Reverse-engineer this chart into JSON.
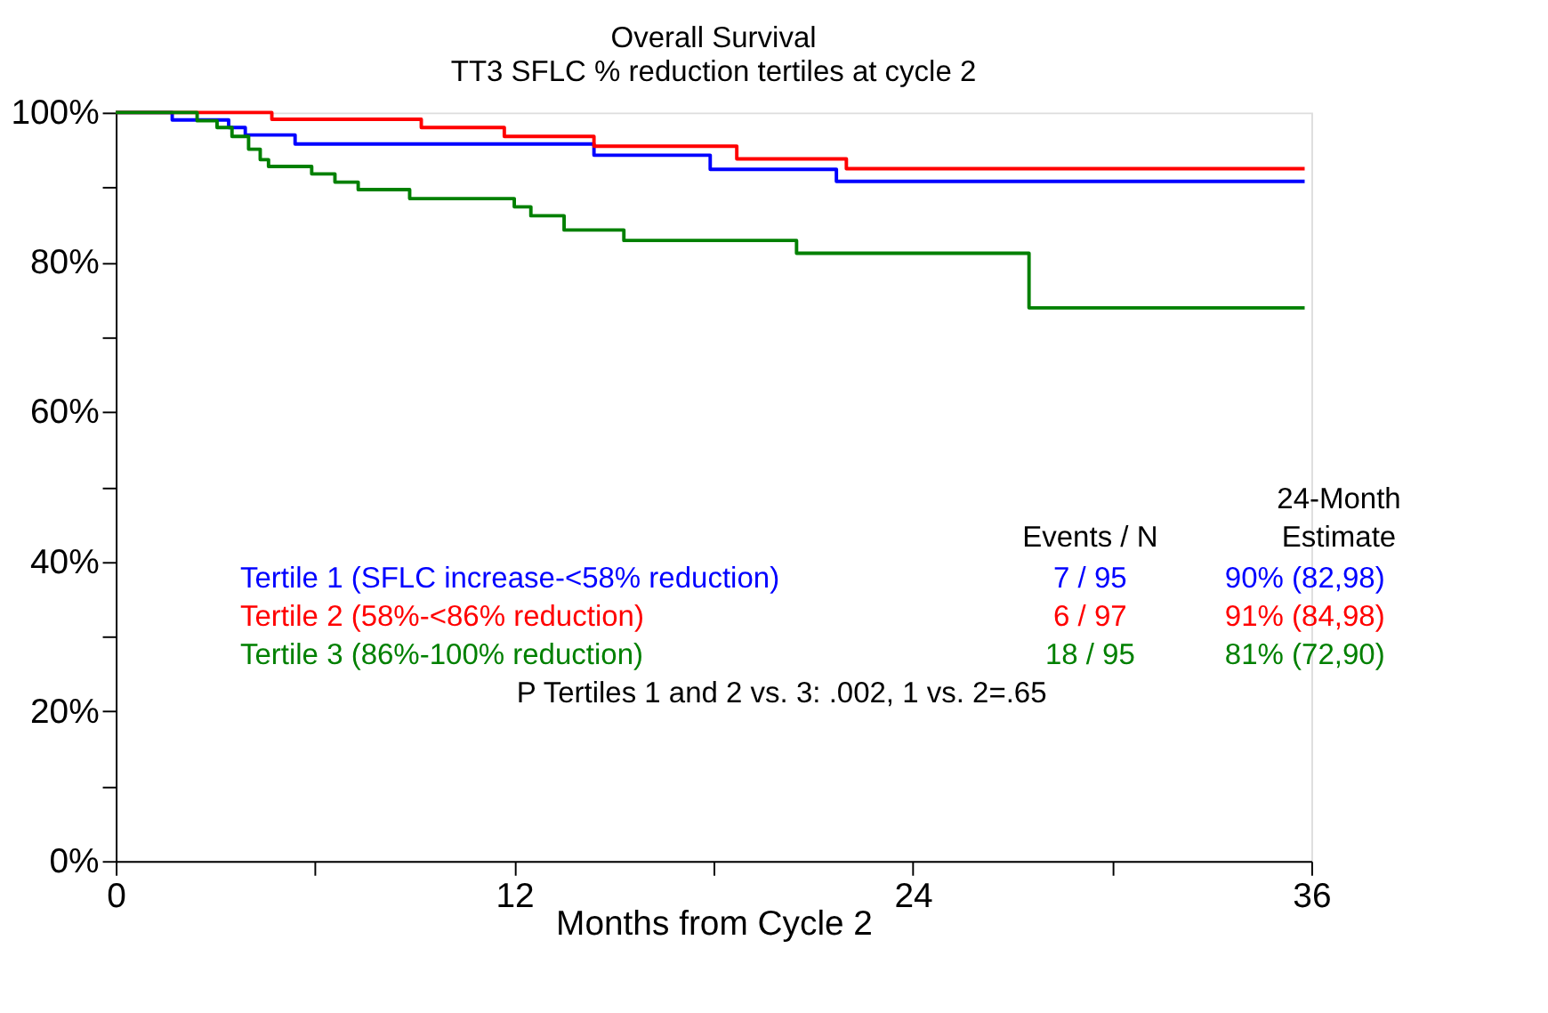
{
  "chart_data": {
    "type": "step",
    "title": "Overall Survival",
    "subtitle": "TT3 SFLC % reduction tertiles at cycle 2",
    "xlabel": "Months from Cycle 2",
    "xlim": [
      0,
      36
    ],
    "ylim": [
      0,
      100
    ],
    "xticks": [
      0,
      {
        "value": 6,
        "label": null
      },
      12,
      {
        "value": 18,
        "label": null
      },
      24,
      {
        "value": 30,
        "label": null
      },
      36
    ],
    "yticks": [
      {
        "value": 0,
        "label": "0%"
      },
      {
        "value": 10,
        "label": null
      },
      {
        "value": 20,
        "label": "20%"
      },
      {
        "value": 30,
        "label": null
      },
      {
        "value": 40,
        "label": "40%"
      },
      {
        "value": 50,
        "label": null
      },
      {
        "value": 60,
        "label": "60%"
      },
      {
        "value": 70,
        "label": null
      },
      {
        "value": 80,
        "label": "80%"
      },
      {
        "value": 90,
        "label": null
      },
      {
        "value": 100,
        "label": "100%"
      }
    ],
    "grid": false,
    "legend": "bottom",
    "line_style": "solid",
    "marker": "none",
    "series": [
      {
        "name": "Tertile 1 (SFLC increase-<58% reduction)",
        "color": "#0000ff",
        "x": [
          0,
          1.7,
          3.4,
          3.9,
          5.4,
          14.4,
          17.9,
          21.7,
          35.8
        ],
        "values": [
          100,
          99,
          98,
          97,
          95.8,
          94.3,
          92.4,
          90.8,
          90.8
        ]
      },
      {
        "name": "Tertile 2 (58%-<86% reduction)",
        "color": "#ff0000",
        "x": [
          0,
          4.7,
          9.2,
          11.7,
          14.4,
          18.7,
          22.0,
          35.8
        ],
        "values": [
          100,
          99.1,
          98,
          96.8,
          95.5,
          93.8,
          92.5,
          92.5
        ]
      },
      {
        "name": "Tertile 3 (86%-100% reduction)",
        "color": "#008000",
        "x": [
          0,
          2.45,
          3.05,
          3.5,
          4.0,
          4.35,
          4.6,
          5.9,
          6.6,
          7.3,
          8.85,
          12.0,
          12.5,
          13.5,
          15.3,
          20.5,
          27.5,
          35.8
        ],
        "values": [
          100,
          98.9,
          98,
          96.8,
          95.1,
          93.7,
          92.8,
          91.8,
          90.7,
          89.7,
          88.5,
          87.4,
          86.2,
          84.3,
          82.9,
          81.2,
          73.9,
          73.9
        ]
      }
    ],
    "annotations": [
      "Events / N",
      "24-Month",
      "Estimate",
      "7 / 95",
      "90%  (82,98)",
      "6 / 97",
      "91%  (84,98)",
      "18 / 95",
      "81%  (72,90)",
      "P Tertiles 1 and 2 vs. 3: .002, 1 vs. 2=.65"
    ]
  }
}
